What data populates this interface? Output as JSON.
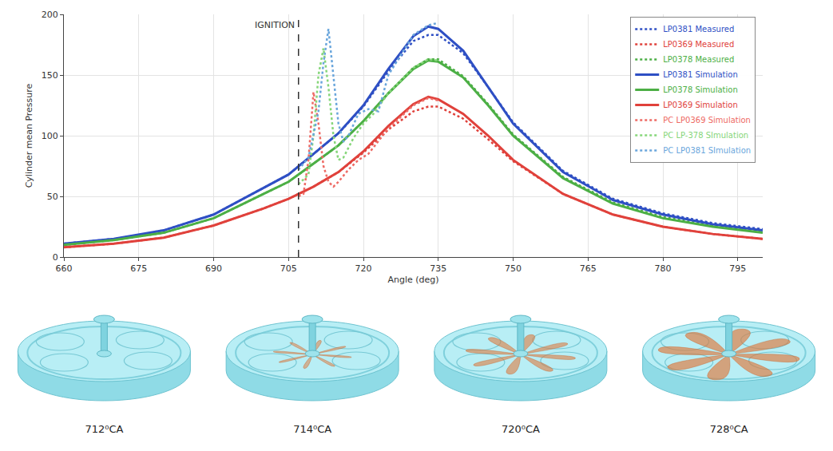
{
  "chart_data": {
    "type": "line",
    "x_label": "Angle (deg)",
    "y_label": "Cylinder mean Pressure",
    "xlim": [
      660,
      800
    ],
    "xticks": [
      660,
      675,
      690,
      705,
      720,
      735,
      750,
      765,
      780,
      795
    ],
    "ylim": [
      0,
      200
    ],
    "yticks": [
      0,
      50,
      100,
      150,
      200
    ],
    "grid": true,
    "legend": "upper right",
    "annotations": [
      {
        "text": "IGNITION",
        "x": 707,
        "y": 197,
        "line_style": "dash"
      }
    ],
    "series": [
      {
        "name": "LP0381 Measured",
        "color": "#2e4fc4",
        "line_style": "dot",
        "x": [
          660,
          670,
          680,
          690,
          700,
          705,
          710,
          715,
          720,
          725,
          730,
          733,
          735,
          740,
          745,
          750,
          760,
          770,
          780,
          790,
          800
        ],
        "values": [
          11,
          15,
          22,
          35,
          57,
          68,
          85,
          102,
          124,
          153,
          178,
          183,
          183,
          168,
          140,
          111,
          71,
          48,
          36,
          28,
          23
        ]
      },
      {
        "name": "LP0369 Measured",
        "color": "#e0413b",
        "line_style": "dot",
        "x": [
          660,
          670,
          680,
          690,
          700,
          705,
          710,
          715,
          720,
          725,
          730,
          733,
          735,
          740,
          745,
          750,
          760,
          770,
          780,
          790,
          800
        ],
        "values": [
          8,
          11,
          16,
          26,
          40,
          48,
          58,
          70,
          86,
          105,
          120,
          124,
          124,
          114,
          97,
          79,
          52,
          35,
          25,
          19,
          15
        ]
      },
      {
        "name": "LP0378 Measured",
        "color": "#4caf45",
        "line_style": "dot",
        "x": [
          660,
          670,
          680,
          690,
          700,
          705,
          710,
          715,
          720,
          725,
          730,
          733,
          735,
          740,
          745,
          750,
          760,
          770,
          780,
          790,
          800
        ],
        "values": [
          10,
          14,
          20,
          32,
          52,
          62,
          77,
          92,
          112,
          135,
          156,
          163,
          163,
          149,
          126,
          101,
          66,
          45,
          33,
          26,
          21
        ]
      },
      {
        "name": "LP0381 Simulation",
        "color": "#2e4fc4",
        "line_style": "solid",
        "x": [
          660,
          670,
          680,
          690,
          700,
          705,
          710,
          715,
          720,
          725,
          730,
          733,
          735,
          740,
          745,
          750,
          760,
          770,
          780,
          790,
          800
        ],
        "values": [
          11,
          15,
          22,
          35,
          57,
          68,
          85,
          102,
          125,
          155,
          182,
          190,
          188,
          170,
          140,
          110,
          70,
          47,
          35,
          27,
          22
        ]
      },
      {
        "name": "LP0378 Simulation",
        "color": "#4caf45",
        "line_style": "solid",
        "x": [
          660,
          670,
          680,
          690,
          700,
          705,
          710,
          715,
          720,
          725,
          730,
          733,
          735,
          740,
          745,
          750,
          760,
          770,
          780,
          790,
          800
        ],
        "values": [
          10,
          14,
          20,
          32,
          52,
          62,
          77,
          92,
          112,
          135,
          155,
          162,
          161,
          148,
          125,
          100,
          65,
          44,
          32,
          25,
          20
        ]
      },
      {
        "name": "LP0369 Simulation",
        "color": "#e0413b",
        "line_style": "solid",
        "x": [
          660,
          670,
          680,
          690,
          700,
          705,
          710,
          715,
          720,
          725,
          730,
          733,
          735,
          740,
          745,
          750,
          760,
          770,
          780,
          790,
          800
        ],
        "values": [
          8,
          11,
          16,
          26,
          40,
          48,
          58,
          70,
          87,
          108,
          126,
          132,
          130,
          118,
          100,
          80,
          52,
          35,
          25,
          19,
          15
        ]
      },
      {
        "name": "PC LP0369 Simulation",
        "color": "#ee6a64",
        "line_style": "dot",
        "x": [
          707,
          708,
          709,
          710,
          711,
          712,
          713,
          714,
          715,
          717,
          719,
          721,
          725,
          730,
          733,
          735
        ],
        "values": [
          50,
          52,
          80,
          136,
          110,
          75,
          62,
          58,
          62,
          72,
          80,
          85,
          106,
          125,
          131,
          129
        ]
      },
      {
        "name": "PC LP-378 SImulation",
        "color": "#86d67a",
        "line_style": "dot",
        "x": [
          707,
          709,
          710,
          711,
          712,
          713,
          714,
          715,
          716,
          718,
          720,
          722,
          725,
          730,
          733,
          735
        ],
        "values": [
          60,
          68,
          100,
          150,
          172,
          140,
          100,
          80,
          82,
          98,
          110,
          118,
          135,
          156,
          163,
          162
        ]
      },
      {
        "name": "PC LP0381 SImulation",
        "color": "#6aa6dc",
        "line_style": "dot",
        "x": [
          707,
          709,
          711,
          712,
          713,
          714,
          715,
          716,
          717,
          719,
          721,
          723,
          725,
          730,
          733,
          735
        ],
        "values": [
          72,
          82,
          120,
          160,
          188,
          150,
          110,
          95,
          100,
          118,
          122,
          120,
          150,
          183,
          191,
          193
        ]
      }
    ]
  },
  "snapshots": [
    {
      "label": "712⁰CA"
    },
    {
      "label": "714⁰CA"
    },
    {
      "label": "720⁰CA"
    },
    {
      "label": "728⁰CA"
    }
  ]
}
